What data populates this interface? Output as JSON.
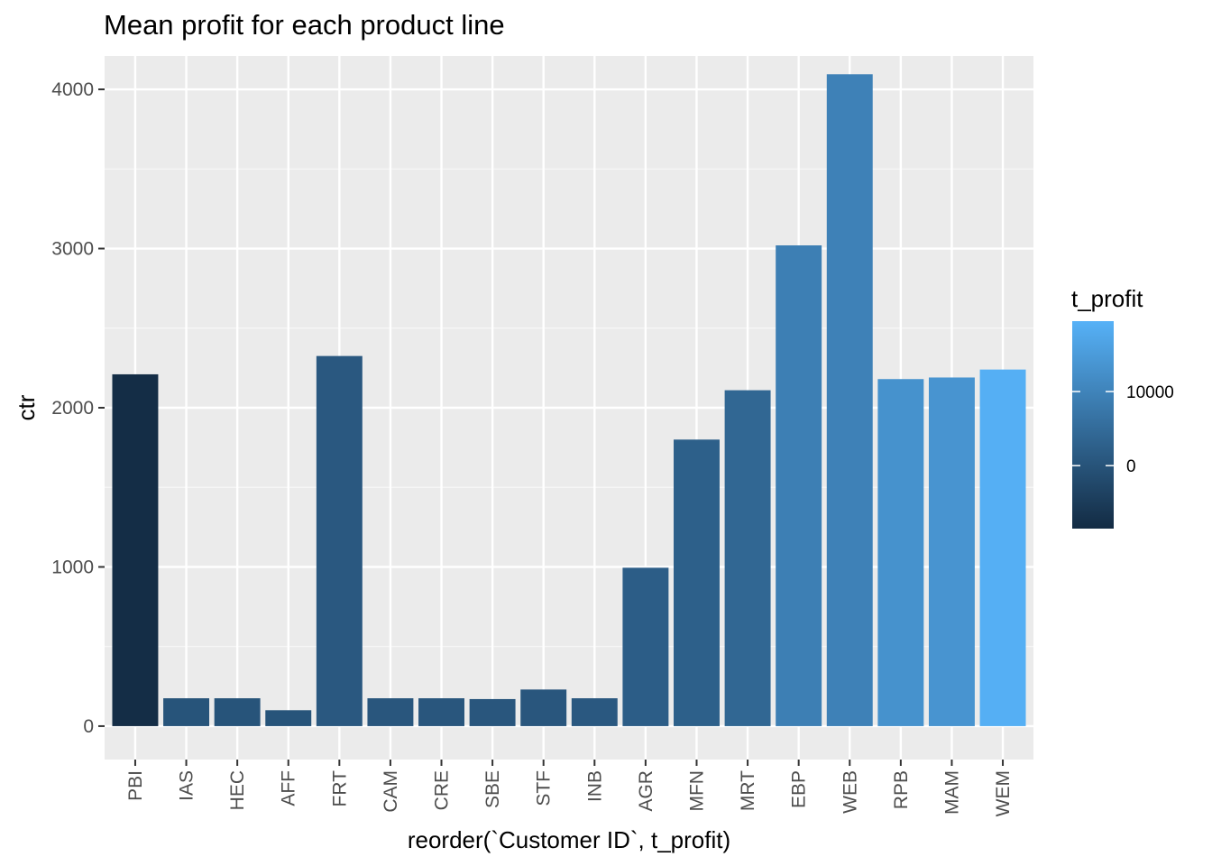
{
  "chart_data": {
    "type": "bar",
    "title": "Mean profit for each product line",
    "xlabel": "reorder(`Customer ID`, t_profit)",
    "ylabel": "ctr",
    "ylim": [
      -210,
      4210
    ],
    "yticks": [
      0,
      1000,
      2000,
      3000,
      4000
    ],
    "grid": true,
    "categories": [
      "PBI",
      "IAS",
      "HEC",
      "AFF",
      "FRT",
      "CAM",
      "CRE",
      "SBE",
      "STF",
      "INB",
      "AGR",
      "MFN",
      "MRT",
      "EBP",
      "WEB",
      "RPB",
      "MAM",
      "WEM"
    ],
    "values": [
      2210,
      175,
      175,
      100,
      2325,
      175,
      175,
      170,
      230,
      175,
      995,
      1800,
      2110,
      3020,
      4095,
      2180,
      2190,
      2240
    ],
    "fill_values": [
      -8000,
      0,
      0,
      0,
      1000,
      500,
      500,
      500,
      500,
      1000,
      2000,
      2500,
      4000,
      9000,
      9500,
      13000,
      13500,
      19000
    ],
    "legend": {
      "title": "t_profit",
      "position": "right",
      "range": [
        -8500,
        19500
      ],
      "ticks": [
        0,
        10000
      ],
      "low_color": "#132B43",
      "high_color": "#56B1F7"
    }
  }
}
